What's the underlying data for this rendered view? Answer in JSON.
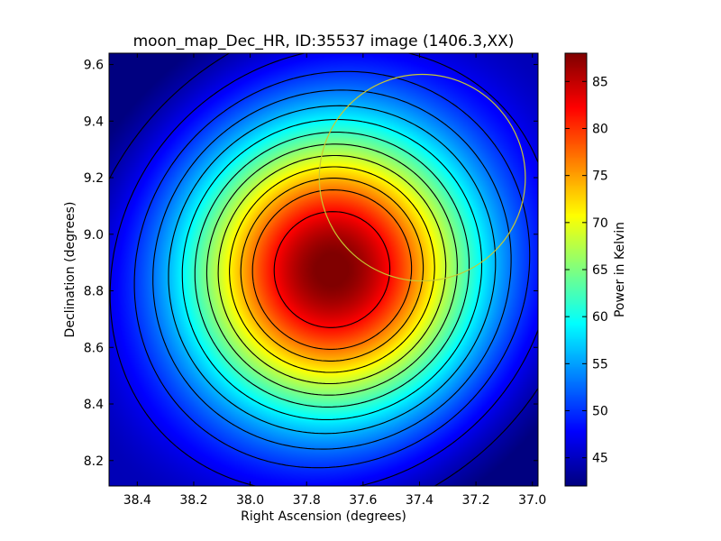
{
  "chart_data": {
    "type": "heatmap",
    "title": "moon_map_Dec_HR, ID:35537 image (1406.3,XX)",
    "xlabel": "Right Ascension (degrees)",
    "ylabel": "Declination (degrees)",
    "colorbar_label": "Power in Kelvin",
    "colormap": "jet",
    "x_range": [
      38.5,
      36.98
    ],
    "y_range": [
      8.11,
      9.64
    ],
    "x_inverted": true,
    "x_ticks": [
      38.4,
      38.2,
      38.0,
      37.8,
      37.6,
      37.4,
      37.2,
      37.0
    ],
    "x_tick_labels": [
      "38.4",
      "38.2",
      "38.0",
      "37.8",
      "37.6",
      "37.4",
      "37.2",
      "37.0"
    ],
    "y_ticks": [
      8.2,
      8.4,
      8.6,
      8.8,
      9.0,
      9.2,
      9.4,
      9.6
    ],
    "y_tick_labels": [
      "8.2",
      "8.4",
      "8.6",
      "8.8",
      "9.0",
      "9.2",
      "9.4",
      "9.6"
    ],
    "colorbar_range": [
      42,
      88
    ],
    "colorbar_ticks": [
      45,
      50,
      55,
      60,
      65,
      70,
      75,
      80,
      85
    ],
    "colorbar_tick_labels": [
      "45",
      "50",
      "55",
      "60",
      "65",
      "70",
      "75",
      "80",
      "85"
    ],
    "peak": {
      "ra": 37.71,
      "dec": 8.875,
      "value": 87.5
    },
    "background_value": 42.5,
    "source_radius_deg": 0.37,
    "contour_levels": [
      44,
      47,
      50,
      53,
      56,
      59,
      62,
      65,
      68,
      71,
      74,
      77,
      82
    ],
    "circle": {
      "ra": 37.39,
      "dec": 9.2,
      "radius_deg": 0.365,
      "color": "#c8c832"
    },
    "grid": false,
    "legend": "none"
  }
}
